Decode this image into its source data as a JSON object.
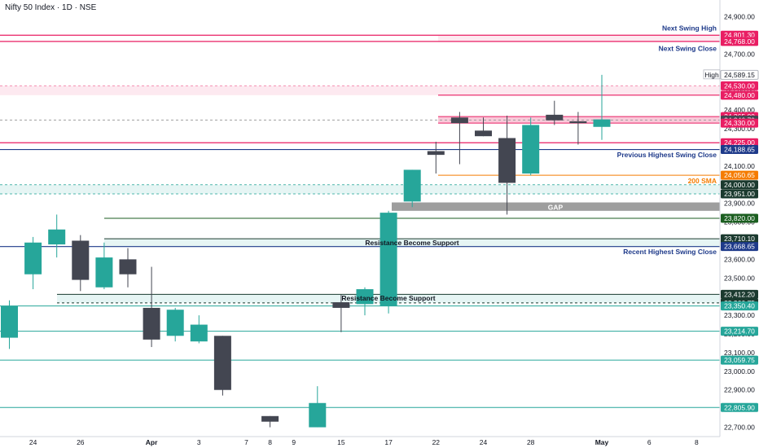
{
  "title": "Nifty 50 Index · 1D · NSE",
  "chart_data": {
    "type": "candlestick",
    "ylim": [
      22650,
      24990
    ],
    "y_ticks": [
      "22,700.00",
      "22,800.00",
      "22,900.00",
      "23,000.00",
      "23,100.00",
      "23,200.00",
      "23,300.00",
      "23,400.00",
      "23,500.00",
      "23,600.00",
      "23,700.00",
      "23,800.00",
      "23,900.00",
      "24,000.00",
      "24,100.00",
      "24,200.00",
      "24,300.00",
      "24,400.00",
      "24,500.00",
      "24,600.00",
      "24,700.00",
      "24,800.00",
      "24,900.00"
    ],
    "x_ticks": [
      {
        "label": "24",
        "slot": 1
      },
      {
        "label": "26",
        "slot": 3
      },
      {
        "label": "Apr",
        "slot": 6,
        "bold": true
      },
      {
        "label": "3",
        "slot": 8
      },
      {
        "label": "7",
        "slot": 10
      },
      {
        "label": "8",
        "slot": 11
      },
      {
        "label": "9",
        "slot": 12
      },
      {
        "label": "15",
        "slot": 14
      },
      {
        "label": "17",
        "slot": 16
      },
      {
        "label": "22",
        "slot": 18
      },
      {
        "label": "24",
        "slot": 20
      },
      {
        "label": "28",
        "slot": 22
      },
      {
        "label": "May",
        "slot": 25,
        "bold": true
      },
      {
        "label": "6",
        "slot": 27
      },
      {
        "label": "8",
        "slot": 29
      }
    ],
    "candles": [
      {
        "slot": 0,
        "o": 23180,
        "h": 23380,
        "l": 23120,
        "c": 23350
      },
      {
        "slot": 1,
        "o": 23520,
        "h": 23720,
        "l": 23440,
        "c": 23690
      },
      {
        "slot": 2,
        "o": 23680,
        "h": 23840,
        "l": 23610,
        "c": 23760
      },
      {
        "slot": 3,
        "o": 23700,
        "h": 23730,
        "l": 23430,
        "c": 23490
      },
      {
        "slot": 4,
        "o": 23450,
        "h": 23690,
        "l": 23440,
        "c": 23610
      },
      {
        "slot": 5,
        "o": 23600,
        "h": 23660,
        "l": 23450,
        "c": 23520
      },
      {
        "slot": 6,
        "o": 23340,
        "h": 23560,
        "l": 23130,
        "c": 23170
      },
      {
        "slot": 7,
        "o": 23190,
        "h": 23340,
        "l": 23160,
        "c": 23330
      },
      {
        "slot": 8,
        "o": 23160,
        "h": 23300,
        "l": 23150,
        "c": 23250
      },
      {
        "slot": 9,
        "o": 23190,
        "h": 23190,
        "l": 22870,
        "c": 22900
      },
      {
        "slot": 11,
        "o": 22760,
        "h": 22760,
        "l": 22700,
        "c": 22730
      },
      {
        "slot": 13,
        "o": 22700,
        "h": 22920,
        "l": 22700,
        "c": 22830
      },
      {
        "slot": 14,
        "o": 23370,
        "h": 23410,
        "l": 23210,
        "c": 23340
      },
      {
        "slot": 15,
        "o": 23360,
        "h": 23450,
        "l": 23300,
        "c": 23440
      },
      {
        "slot": 16,
        "o": 23350,
        "h": 23860,
        "l": 23310,
        "c": 23850
      },
      {
        "slot": 17,
        "o": 23910,
        "h": 24080,
        "l": 23880,
        "c": 24080
      },
      {
        "slot": 18,
        "o": 24180,
        "h": 24230,
        "l": 24060,
        "c": 24160
      },
      {
        "slot": 19,
        "o": 24360,
        "h": 24390,
        "l": 24110,
        "c": 24330
      },
      {
        "slot": 20,
        "o": 24290,
        "h": 24360,
        "l": 24260,
        "c": 24260
      },
      {
        "slot": 21,
        "o": 24250,
        "h": 24370,
        "l": 23840,
        "c": 24010
      },
      {
        "slot": 22,
        "o": 24060,
        "h": 24360,
        "l": 24050,
        "c": 24320
      },
      {
        "slot": 23,
        "o": 24375,
        "h": 24450,
        "l": 24320,
        "c": 24345
      },
      {
        "slot": 24,
        "o": 24340,
        "h": 24390,
        "l": 24215,
        "c": 24330
      },
      {
        "slot": 25,
        "o": 24310,
        "h": 24589.15,
        "l": 24240,
        "c": 24350
      }
    ],
    "levels": [
      {
        "value": 24801.3,
        "label": "24,801.30",
        "color": "#e91e63"
      },
      {
        "value": 24768.0,
        "label": "24,768.00",
        "color": "#e91e63"
      },
      {
        "value": 24589.15,
        "label": "24,589.15",
        "color": "#b2b5be",
        "text_color": "#131722"
      },
      {
        "value": 24530.0,
        "label": "24,530.00",
        "color": "#e91e63"
      },
      {
        "value": 24480.0,
        "label": "24,480.00",
        "color": "#e91e63"
      },
      {
        "value": 24365.0,
        "label": "24,365.00",
        "color": "#e91e63"
      },
      {
        "value": 24346.7,
        "label": "24,346.70",
        "color": "#434651"
      },
      {
        "value": 24330.0,
        "label": "24,330.00",
        "color": "#e91e63"
      },
      {
        "value": 24225.0,
        "label": "24,225.00",
        "color": "#e91e63"
      },
      {
        "value": 24188.65,
        "label": "24,188.65",
        "color": "#1e3a8a"
      },
      {
        "value": 24050.65,
        "label": "24,050.65",
        "color": "#f57c00"
      },
      {
        "value": 24000.0,
        "label": "24,000.00",
        "color": "#1b3a2f"
      },
      {
        "value": 23951.0,
        "label": "23,951.00",
        "color": "#1b3a2f"
      },
      {
        "value": 23820.0,
        "label": "23,820.00",
        "color": "#1b5e20"
      },
      {
        "value": 23710.1,
        "label": "23,710.10",
        "color": "#1b3a2f"
      },
      {
        "value": 23668.65,
        "label": "23,668.65",
        "color": "#1e3a8a"
      },
      {
        "value": 23412.2,
        "label": "23,412.20",
        "color": "#1b3a2f"
      },
      {
        "value": 23366.75,
        "label": "23,366.75",
        "color": "#1b3a2f"
      },
      {
        "value": 23350.4,
        "label": "23,350.40",
        "color": "#26a69a"
      },
      {
        "value": 23214.7,
        "label": "23,214.70",
        "color": "#26a69a"
      },
      {
        "value": 23059.75,
        "label": "23,059.75",
        "color": "#26a69a"
      },
      {
        "value": 22805.9,
        "label": "22,805.90",
        "color": "#26a69a"
      }
    ],
    "annotations": [
      {
        "text": "Next Swing High",
        "value": 24840,
        "color": "#1e3a8a"
      },
      {
        "text": "Next Swing Close",
        "value": 24730,
        "color": "#1e3a8a"
      },
      {
        "text": "Previous Highest Swing Close",
        "value": 24160,
        "color": "#1e3a8a"
      },
      {
        "text": "200 SMA",
        "value": 24020,
        "color": "#f57c00"
      },
      {
        "text": "Recent Highest Swing Close",
        "value": 23640,
        "color": "#1e3a8a"
      }
    ],
    "zone_labels": [
      {
        "text": "GAP",
        "value": 23880,
        "color": "#ffffff"
      },
      {
        "text": "Resistance Become Support",
        "value": 23690,
        "color": "#131722"
      },
      {
        "text": "Resistance Become Support",
        "value": 23392,
        "color": "#131722"
      }
    ],
    "high_tag": "High"
  }
}
